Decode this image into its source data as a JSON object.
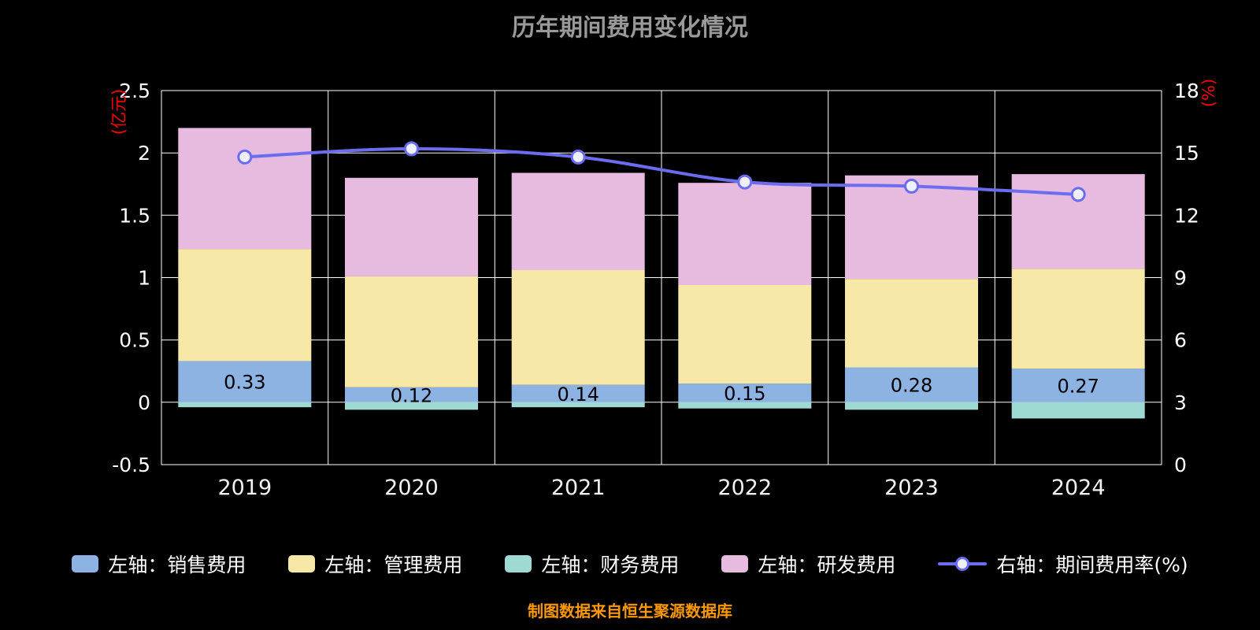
{
  "title": "历年期间费用变化情况",
  "source_note": "制图数据来自恒生聚源数据库",
  "colors": {
    "background": "#000000",
    "title": "#999999",
    "grid": "#FFFFFF",
    "tick_label": "#FFFFFF",
    "x_label": "#F2F2F2",
    "axis_unit": "#FF0000",
    "bar_label": "#000000",
    "source": "#FF9900",
    "legend_text": "#FFFFFF",
    "sales": "#8CB3E1",
    "management": "#F7E8A8",
    "finance": "#9ED9D2",
    "rd": "#E6BBDF",
    "rate_line": "#6C6CF0",
    "marker_fill": "#EEEFFF"
  },
  "chart_data": {
    "type": "bar",
    "subtype": "stacked-bar-with-line",
    "categories": [
      "2019",
      "2020",
      "2021",
      "2022",
      "2023",
      "2024"
    ],
    "left_axis": {
      "unit": "(亿元)",
      "min": -0.5,
      "max": 2.5,
      "ticks": [
        "2.5",
        "2",
        "1.5",
        "1",
        "0.5",
        "0",
        "-0.5"
      ]
    },
    "right_axis": {
      "unit": "(%)",
      "min": 0,
      "max": 18,
      "ticks": [
        "18",
        "15",
        "12",
        "9",
        "6",
        "3",
        "0"
      ]
    },
    "grid": true,
    "legend_position": "bottom",
    "series": [
      {
        "name": "左轴：销售费用",
        "axis": "left",
        "type": "bar",
        "values": [
          0.33,
          0.12,
          0.14,
          0.15,
          0.28,
          0.27
        ],
        "labels": [
          "0.33",
          "0.12",
          "0.14",
          "0.15",
          "0.28",
          "0.27"
        ]
      },
      {
        "name": "左轴：管理费用",
        "axis": "left",
        "type": "bar",
        "values": [
          0.9,
          0.89,
          0.92,
          0.79,
          0.71,
          0.8
        ]
      },
      {
        "name": "左轴：财务费用",
        "axis": "left",
        "type": "bar",
        "values": [
          -0.04,
          -0.06,
          -0.04,
          -0.05,
          -0.06,
          -0.13
        ]
      },
      {
        "name": "左轴：研发费用",
        "axis": "left",
        "type": "bar",
        "values": [
          0.97,
          0.79,
          0.78,
          0.82,
          0.83,
          0.76
        ]
      },
      {
        "name": "右轴：期间费用率(%)",
        "axis": "right",
        "type": "line",
        "values": [
          14.8,
          15.2,
          14.8,
          13.6,
          13.4,
          13.0
        ]
      }
    ]
  },
  "legend": [
    {
      "key": "sales",
      "type": "bar",
      "label": "左轴：销售费用"
    },
    {
      "key": "management",
      "type": "bar",
      "label": "左轴：管理费用"
    },
    {
      "key": "finance",
      "type": "bar",
      "label": "左轴：财务费用"
    },
    {
      "key": "rd",
      "type": "bar",
      "label": "左轴：研发费用"
    },
    {
      "key": "rate",
      "type": "line",
      "label": "右轴：期间费用率(%)"
    }
  ]
}
